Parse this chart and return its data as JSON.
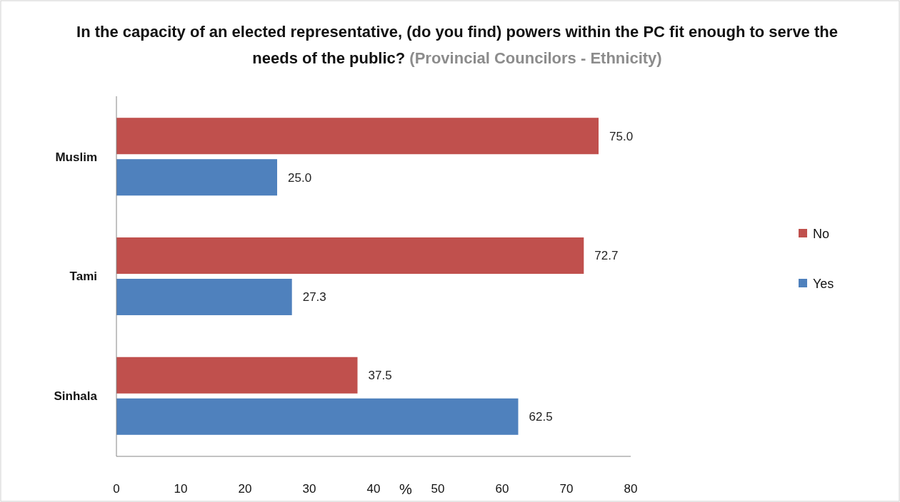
{
  "chart_data": {
    "type": "bar",
    "orientation": "horizontal",
    "title": "In the capacity of an elected representative, (do you find) powers within the PC fit enough to serve the needs of the public?",
    "subtitle": "(Provincial  Councilors - Ethnicity)",
    "xlabel": "%",
    "categories": [
      "Muslim",
      "Tami",
      "Sinhala"
    ],
    "series": [
      {
        "name": "No",
        "color": "#c0504d",
        "values": [
          75.0,
          72.7,
          37.5
        ]
      },
      {
        "name": "Yes",
        "color": "#4f81bd",
        "values": [
          25.0,
          27.3,
          62.5
        ]
      }
    ],
    "value_labels": [
      [
        "75.0",
        "72.7",
        "37.5"
      ],
      [
        "25.0",
        "27.3",
        "62.5"
      ]
    ],
    "xlim": [
      0,
      80
    ],
    "xticks": [
      0,
      10,
      20,
      30,
      40,
      50,
      60,
      70,
      80
    ],
    "grid": false,
    "legend": "right"
  }
}
